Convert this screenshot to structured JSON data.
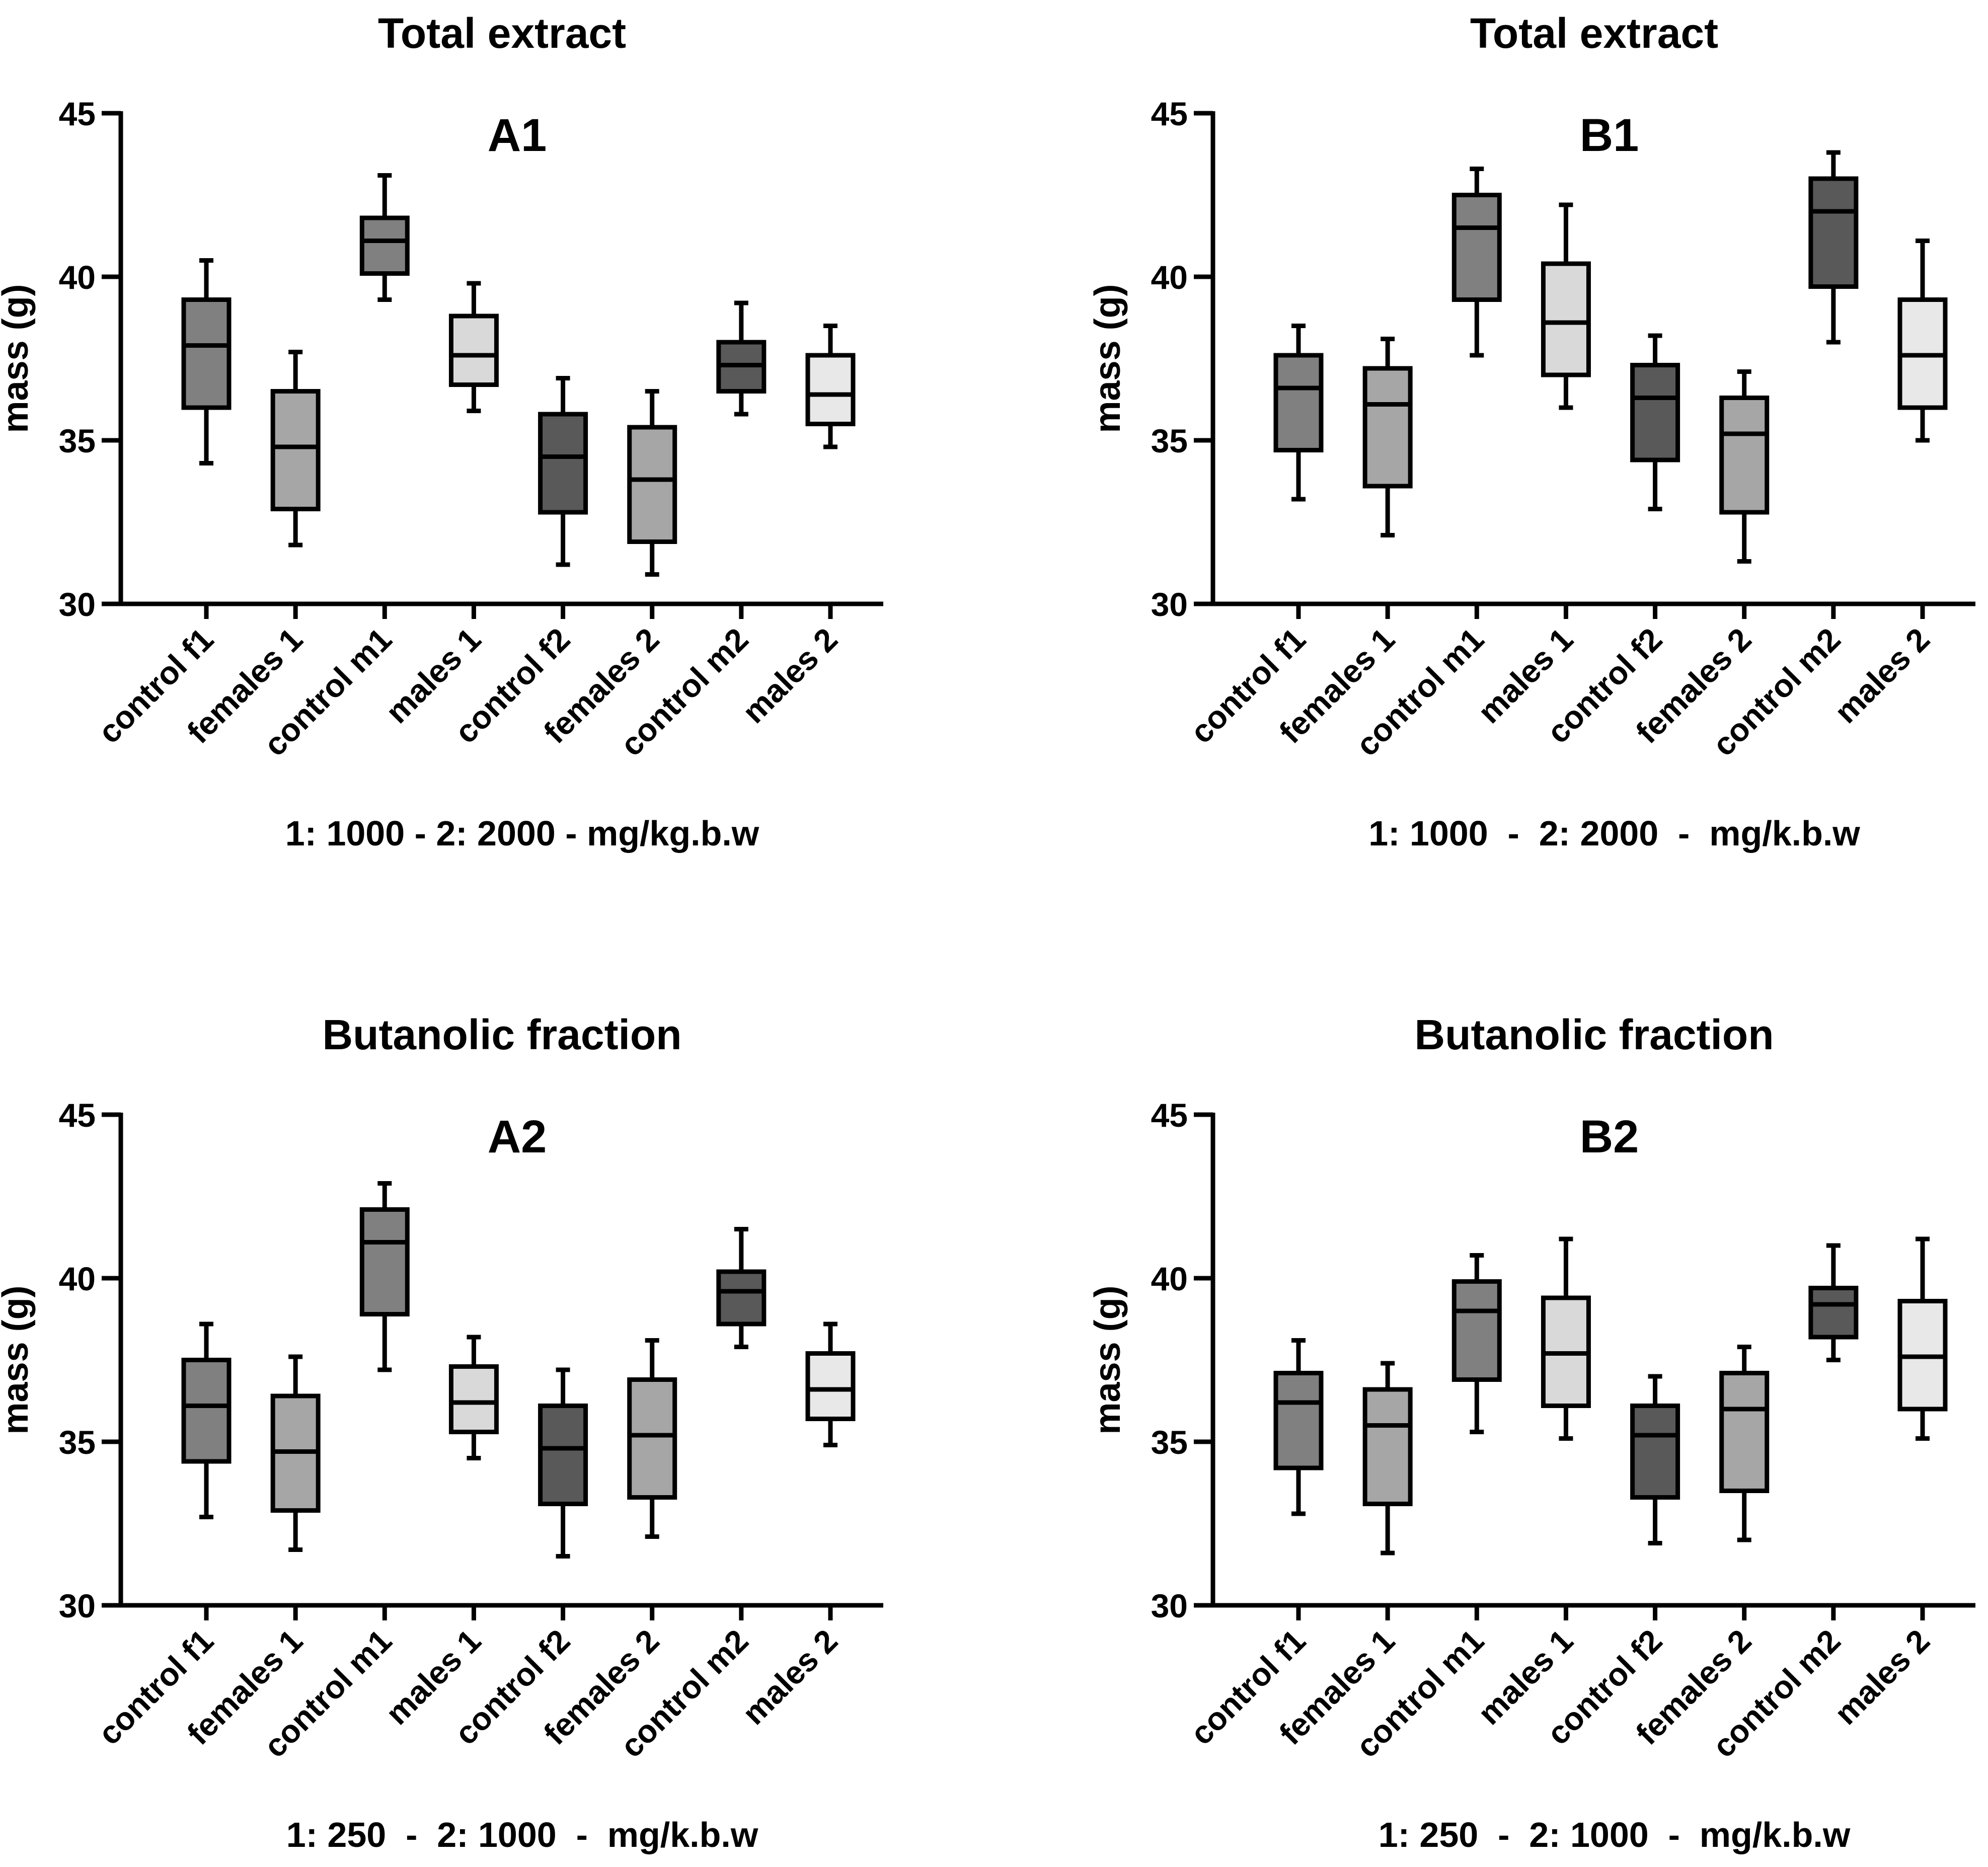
{
  "colors": {
    "dark": "#595959",
    "mid": "#808080",
    "light": "#a6a6a6",
    "lighter": "#d9d9d9",
    "lightest": "#e8e8e8",
    "stroke": "#000000"
  },
  "chart_data": [
    {
      "type": "box",
      "title": "Total extract",
      "panel_label": "A1",
      "ylabel": "mass (g)",
      "xlabel": "1: 1000 - 2: 2000 - mg/kg.b.w",
      "ylim": [
        30,
        45
      ],
      "yticks": [
        30,
        35,
        40,
        45
      ],
      "categories": [
        "control f1",
        "females 1",
        "control m1",
        "males 1",
        "control f2",
        "females 2",
        "control m2",
        "males 2"
      ],
      "fills": [
        "mid",
        "light",
        "mid",
        "lighter",
        "dark",
        "light",
        "dark",
        "lightest"
      ],
      "boxes": [
        {
          "min": 34.3,
          "q1": 36.0,
          "median": 37.9,
          "q3": 39.3,
          "max": 40.5
        },
        {
          "min": 31.8,
          "q1": 32.9,
          "median": 34.8,
          "q3": 36.5,
          "max": 37.7
        },
        {
          "min": 39.3,
          "q1": 40.1,
          "median": 41.1,
          "q3": 41.8,
          "max": 43.1
        },
        {
          "min": 35.9,
          "q1": 36.7,
          "median": 37.6,
          "q3": 38.8,
          "max": 39.8
        },
        {
          "min": 31.2,
          "q1": 32.8,
          "median": 34.5,
          "q3": 35.8,
          "max": 36.9
        },
        {
          "min": 30.9,
          "q1": 31.9,
          "median": 33.8,
          "q3": 35.4,
          "max": 36.5
        },
        {
          "min": 35.8,
          "q1": 36.5,
          "median": 37.3,
          "q3": 38.0,
          "max": 39.2
        },
        {
          "min": 34.8,
          "q1": 35.5,
          "median": 36.4,
          "q3": 37.6,
          "max": 38.5
        }
      ]
    },
    {
      "type": "box",
      "title": "Total extract",
      "panel_label": "B1",
      "ylabel": "mass (g)",
      "xlabel": "1: 1000  -  2: 2000  -  mg/k.b.w",
      "ylim": [
        30,
        45
      ],
      "yticks": [
        30,
        35,
        40,
        45
      ],
      "categories": [
        "control f1",
        "females 1",
        "control m1",
        "males 1",
        "control f2",
        "females 2",
        "control m2",
        "males 2"
      ],
      "fills": [
        "mid",
        "light",
        "mid",
        "lighter",
        "dark",
        "light",
        "dark",
        "lightest"
      ],
      "boxes": [
        {
          "min": 33.2,
          "q1": 34.7,
          "median": 36.6,
          "q3": 37.6,
          "max": 38.5
        },
        {
          "min": 32.1,
          "q1": 33.6,
          "median": 36.1,
          "q3": 37.2,
          "max": 38.1
        },
        {
          "min": 37.6,
          "q1": 39.3,
          "median": 41.5,
          "q3": 42.5,
          "max": 43.3
        },
        {
          "min": 36.0,
          "q1": 37.0,
          "median": 38.6,
          "q3": 40.4,
          "max": 42.2
        },
        {
          "min": 32.9,
          "q1": 34.4,
          "median": 36.3,
          "q3": 37.3,
          "max": 38.2
        },
        {
          "min": 31.3,
          "q1": 32.8,
          "median": 35.2,
          "q3": 36.3,
          "max": 37.1
        },
        {
          "min": 38.0,
          "q1": 39.7,
          "median": 42.0,
          "q3": 43.0,
          "max": 43.8
        },
        {
          "min": 35.0,
          "q1": 36.0,
          "median": 37.6,
          "q3": 39.3,
          "max": 41.1
        }
      ]
    },
    {
      "type": "box",
      "title": "Butanolic fraction",
      "panel_label": "A2",
      "ylabel": "mass (g)",
      "xlabel": "1: 250  -  2: 1000  -  mg/k.b.w",
      "ylim": [
        30,
        45
      ],
      "yticks": [
        30,
        35,
        40,
        45
      ],
      "categories": [
        "control f1",
        "females 1",
        "control m1",
        "males 1",
        "control f2",
        "females 2",
        "control m2",
        "males 2"
      ],
      "fills": [
        "mid",
        "light",
        "mid",
        "lighter",
        "dark",
        "light",
        "dark",
        "lightest"
      ],
      "boxes": [
        {
          "min": 32.7,
          "q1": 34.4,
          "median": 36.1,
          "q3": 37.5,
          "max": 38.6
        },
        {
          "min": 31.7,
          "q1": 32.9,
          "median": 34.7,
          "q3": 36.4,
          "max": 37.6
        },
        {
          "min": 37.2,
          "q1": 38.9,
          "median": 41.1,
          "q3": 42.1,
          "max": 42.9
        },
        {
          "min": 34.5,
          "q1": 35.3,
          "median": 36.2,
          "q3": 37.3,
          "max": 38.2
        },
        {
          "min": 31.5,
          "q1": 33.1,
          "median": 34.8,
          "q3": 36.1,
          "max": 37.2
        },
        {
          "min": 32.1,
          "q1": 33.3,
          "median": 35.2,
          "q3": 36.9,
          "max": 38.1
        },
        {
          "min": 37.9,
          "q1": 38.6,
          "median": 39.6,
          "q3": 40.2,
          "max": 41.5
        },
        {
          "min": 34.9,
          "q1": 35.7,
          "median": 36.6,
          "q3": 37.7,
          "max": 38.6
        }
      ]
    },
    {
      "type": "box",
      "title": "Butanolic fraction",
      "panel_label": "B2",
      "ylabel": "mass (g)",
      "xlabel": "1: 250  -  2: 1000  -  mg/k.b.w",
      "ylim": [
        30,
        45
      ],
      "yticks": [
        30,
        35,
        40,
        45
      ],
      "categories": [
        "control f1",
        "females 1",
        "control m1",
        "males 1",
        "control f2",
        "females 2",
        "control m2",
        "males 2"
      ],
      "fills": [
        "mid",
        "light",
        "mid",
        "lighter",
        "dark",
        "light",
        "dark",
        "lightest"
      ],
      "boxes": [
        {
          "min": 32.8,
          "q1": 34.2,
          "median": 36.2,
          "q3": 37.1,
          "max": 38.1
        },
        {
          "min": 31.6,
          "q1": 33.1,
          "median": 35.5,
          "q3": 36.6,
          "max": 37.4
        },
        {
          "min": 35.3,
          "q1": 36.9,
          "median": 39.0,
          "q3": 39.9,
          "max": 40.7
        },
        {
          "min": 35.1,
          "q1": 36.1,
          "median": 37.7,
          "q3": 39.4,
          "max": 41.2
        },
        {
          "min": 31.9,
          "q1": 33.3,
          "median": 35.2,
          "q3": 36.1,
          "max": 37.0
        },
        {
          "min": 32.0,
          "q1": 33.5,
          "median": 36.0,
          "q3": 37.1,
          "max": 37.9
        },
        {
          "min": 37.5,
          "q1": 38.2,
          "median": 39.2,
          "q3": 39.7,
          "max": 41.0
        },
        {
          "min": 35.1,
          "q1": 36.0,
          "median": 37.6,
          "q3": 39.3,
          "max": 41.2
        }
      ]
    }
  ]
}
